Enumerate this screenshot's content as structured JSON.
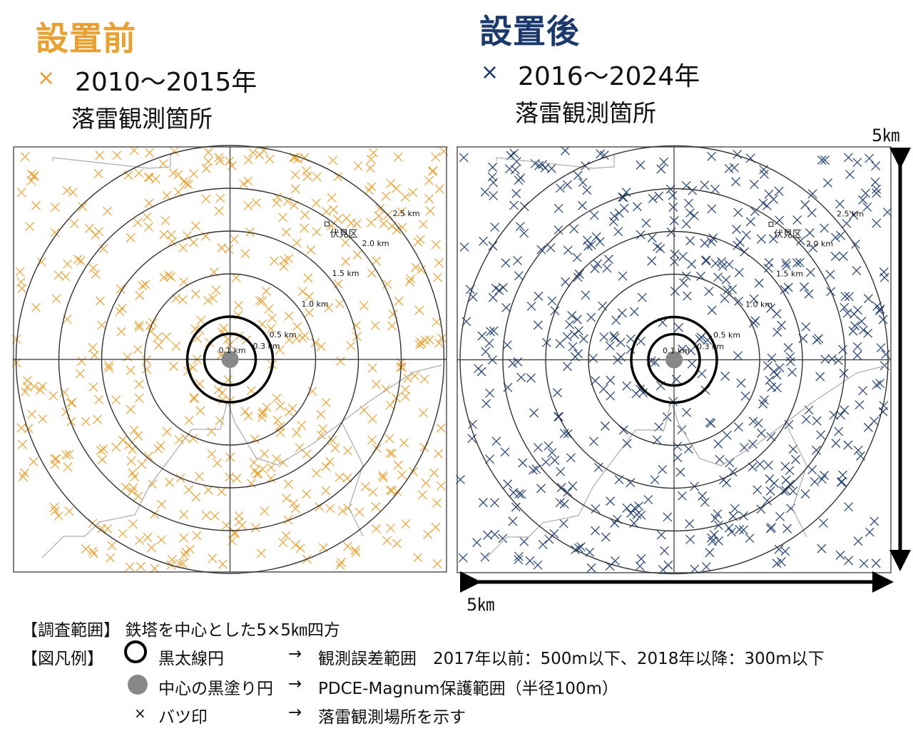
{
  "before": {
    "title": "設置前",
    "marker": "×",
    "years": "2010～2015年",
    "subtitle": "落雷観測箇所",
    "color": "#E8A030"
  },
  "after": {
    "title": "設置後",
    "marker": "×",
    "years": "2016～2024年",
    "subtitle": "落雷観測箇所",
    "color": "#1B3A6B"
  },
  "scale": {
    "vertical_label": "5㎞",
    "horizontal_label": "5㎞"
  },
  "map": {
    "district_label": "伏見区",
    "ring_labels": [
      "0.1 km",
      "0.3 km",
      "0.5 km",
      "1.0 km",
      "1.5 km",
      "2.0 km",
      "2.5 km"
    ],
    "ring_radii_km": [
      0.1,
      0.3,
      0.5,
      1.0,
      1.5,
      2.0,
      2.5
    ],
    "extent_km": 5
  },
  "legend": {
    "range_label": "【調査範囲】",
    "range_text": "鉄塔を中心とした5×5㎞四方",
    "legend_label": "【図凡例】",
    "items": [
      {
        "icon": "thick-circle-icon",
        "name": "黒太線円",
        "arrow": "→",
        "desc": "観測誤差範囲　2017年以前：500m以下、2018年以降：300m以下"
      },
      {
        "icon": "gray-dot-icon",
        "name": "中心の黒塗り円",
        "arrow": "→",
        "desc": "PDCE-Magnum保護範囲（半径100m）"
      },
      {
        "icon": "cross-icon",
        "name": "バツ印",
        "arrow": "→",
        "desc": "落雷観測場所を示す"
      }
    ]
  }
}
